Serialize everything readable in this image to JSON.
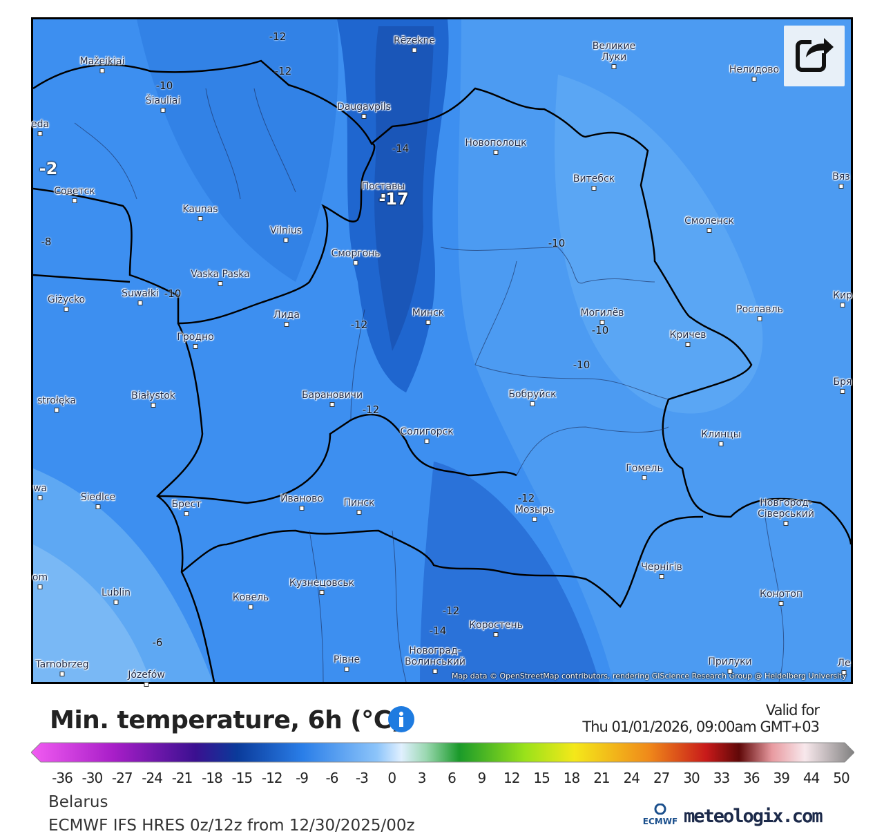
{
  "map": {
    "cities": [
      "Rēzekne",
      "Mažeikiai",
      "Великие Луки",
      "Нелидово",
      "Šiauliai",
      "Daugavpils",
      "Новополоцк",
      "Витебск",
      "Вяз",
      "Советск",
      "Kaunas",
      "Поставы",
      "Vilnius",
      "Смоленск",
      "Сморгонь",
      "Vaska Paska",
      "Giżycko",
      "Suwałki",
      "Минск",
      "Могилёв",
      "Рославль",
      "Кир",
      "Лида",
      "Гродно",
      "Кричев",
      "Бря",
      "Białystok",
      "Барановичи",
      "Бобруйск",
      "strołęka",
      "Солигорск",
      "Клинцы",
      "Гомель",
      "wa",
      "Siedlce",
      "Брест",
      "Иваново",
      "Пинск",
      "Мозырь",
      "Новгород-Сіверський",
      "Чернігів",
      "om",
      "Кузнецовськ",
      "Lublin",
      "Ковель",
      "Конотоп",
      "Коростень",
      "Новоград-Волинський",
      "Tarnobrzeg",
      "Рівне",
      "Józefów",
      "Прилуки",
      "Ле",
      "eda"
    ],
    "contour_labels": [
      -12,
      -12,
      -10,
      -14,
      -2,
      -17,
      -8,
      -10,
      -10,
      -12,
      -10,
      -10,
      -12,
      -12,
      -12,
      -14,
      -6
    ],
    "attribution": "Map data © OpenStreetMap contributors, rendering GIScience Research Group @ Heidelberg University"
  },
  "title": "Min. temperature, 6h (°C)",
  "valid_label": "Valid for",
  "valid_time": "Thu 01/01/2026, 09:00am GMT+03",
  "legend": {
    "ticks": [
      -36,
      -30,
      -27,
      -24,
      -21,
      -18,
      -15,
      -12,
      -9,
      -6,
      -3,
      0,
      3,
      6,
      9,
      12,
      15,
      18,
      21,
      24,
      27,
      30,
      33,
      36,
      39,
      44,
      50
    ]
  },
  "footer": {
    "region": "Belarus",
    "model": "ECMWF IFS HRES 0z/12z from 12/30/2025/00z",
    "ecmwf": "ECMWF",
    "brand": "meteologix.com"
  }
}
